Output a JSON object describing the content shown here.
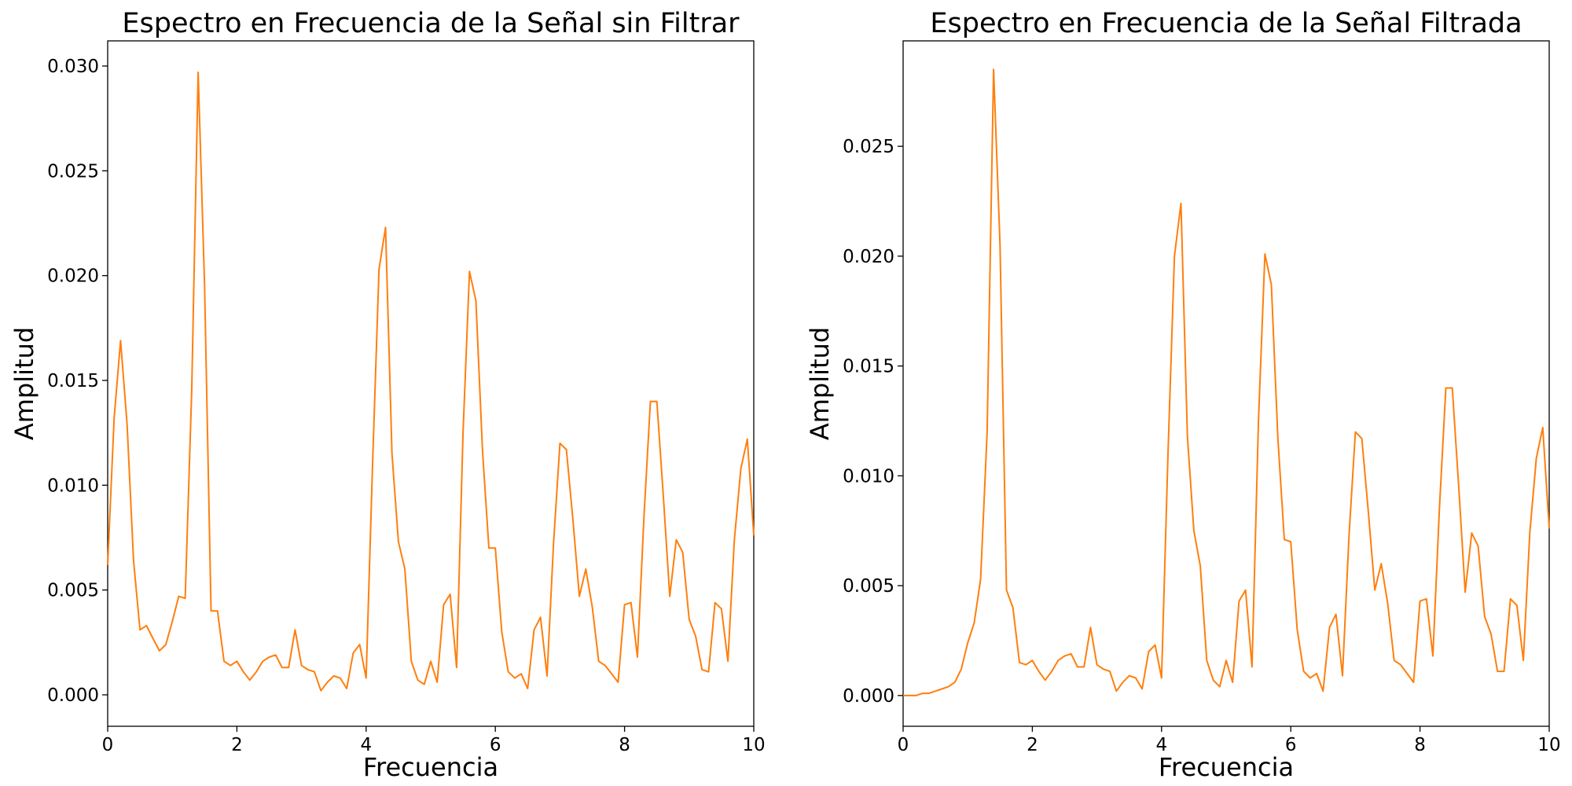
{
  "chart_data": [
    {
      "type": "line",
      "title": "Espectro en Frecuencia de la Señal sin Filtrar",
      "xlabel": "Frecuencia",
      "ylabel": "Amplitud",
      "xlim": [
        0,
        10
      ],
      "ylim": [
        -0.0015,
        0.0312
      ],
      "xticks": [
        0,
        2,
        4,
        6,
        8,
        10
      ],
      "xtick_labels": [
        "0",
        "2",
        "4",
        "6",
        "8",
        "10"
      ],
      "yticks": [
        0.0,
        0.005,
        0.01,
        0.015,
        0.02,
        0.025,
        0.03
      ],
      "ytick_labels": [
        "0.000",
        "0.005",
        "0.010",
        "0.015",
        "0.020",
        "0.025",
        "0.030"
      ],
      "grid": false,
      "color": "#ff7f0e",
      "series": [
        {
          "x": [
            0.0,
            0.1,
            0.2,
            0.3,
            0.4,
            0.5,
            0.6,
            0.7,
            0.8,
            0.9,
            1.0,
            1.1,
            1.2,
            1.3,
            1.4,
            1.5,
            1.6,
            1.7,
            1.8,
            1.9,
            2.0,
            2.1,
            2.2,
            2.3,
            2.4,
            2.5,
            2.6,
            2.7,
            2.8,
            2.9,
            3.0,
            3.1,
            3.2,
            3.3,
            3.4,
            3.5,
            3.6,
            3.7,
            3.8,
            3.9,
            4.0,
            4.1,
            4.2,
            4.3,
            4.4,
            4.5,
            4.6,
            4.7,
            4.8,
            4.9,
            5.0,
            5.1,
            5.2,
            5.3,
            5.4,
            5.5,
            5.6,
            5.7,
            5.8,
            5.9,
            6.0,
            6.1,
            6.2,
            6.3,
            6.4,
            6.5,
            6.6,
            6.7,
            6.8,
            6.9,
            7.0,
            7.1,
            7.2,
            7.3,
            7.4,
            7.5,
            7.6,
            7.7,
            7.8,
            7.9,
            8.0,
            8.1,
            8.2,
            8.3,
            8.4,
            8.5,
            8.6,
            8.7,
            8.8,
            8.9,
            9.0,
            9.1,
            9.2,
            9.3,
            9.4,
            9.5,
            9.6,
            9.7,
            9.8,
            9.9,
            10.0
          ],
          "values": [
            0.0062,
            0.0132,
            0.0169,
            0.0129,
            0.0064,
            0.0031,
            0.0033,
            0.0027,
            0.0021,
            0.0024,
            0.0035,
            0.0047,
            0.0046,
            0.0145,
            0.0297,
            0.0195,
            0.004,
            0.004,
            0.0016,
            0.0014,
            0.0016,
            0.0011,
            0.0007,
            0.0011,
            0.0016,
            0.0018,
            0.0019,
            0.0013,
            0.0013,
            0.0031,
            0.0014,
            0.0012,
            0.0011,
            0.0002,
            0.0006,
            0.0009,
            0.0008,
            0.0003,
            0.002,
            0.0024,
            0.0008,
            0.011,
            0.0203,
            0.0223,
            0.0115,
            0.0073,
            0.006,
            0.0016,
            0.0007,
            0.0005,
            0.0016,
            0.0006,
            0.0043,
            0.0048,
            0.0013,
            0.0125,
            0.0202,
            0.0188,
            0.0117,
            0.007,
            0.007,
            0.003,
            0.0011,
            0.0008,
            0.001,
            0.0003,
            0.0031,
            0.0037,
            0.0009,
            0.0072,
            0.012,
            0.0117,
            0.0084,
            0.0047,
            0.006,
            0.0042,
            0.0016,
            0.0014,
            0.001,
            0.0006,
            0.0043,
            0.0044,
            0.0018,
            0.0085,
            0.014,
            0.014,
            0.0095,
            0.0047,
            0.0074,
            0.0068,
            0.0036,
            0.0028,
            0.0012,
            0.0011,
            0.0044,
            0.0041,
            0.0016,
            0.0074,
            0.0108,
            0.0122,
            0.0076
          ]
        }
      ]
    },
    {
      "type": "line",
      "title": "Espectro en Frecuencia de la Señal Filtrada",
      "xlabel": "Frecuencia",
      "ylabel": "Amplitud",
      "xlim": [
        0,
        10
      ],
      "ylim": [
        -0.0014,
        0.0298
      ],
      "xticks": [
        0,
        2,
        4,
        6,
        8,
        10
      ],
      "xtick_labels": [
        "0",
        "2",
        "4",
        "6",
        "8",
        "10"
      ],
      "yticks": [
        0.0,
        0.005,
        0.01,
        0.015,
        0.02,
        0.025
      ],
      "ytick_labels": [
        "0.000",
        "0.005",
        "0.010",
        "0.015",
        "0.020",
        "0.025"
      ],
      "grid": false,
      "color": "#ff7f0e",
      "series": [
        {
          "x": [
            0.0,
            0.1,
            0.2,
            0.3,
            0.4,
            0.5,
            0.6,
            0.7,
            0.8,
            0.9,
            1.0,
            1.1,
            1.2,
            1.3,
            1.4,
            1.5,
            1.6,
            1.7,
            1.8,
            1.9,
            2.0,
            2.1,
            2.2,
            2.3,
            2.4,
            2.5,
            2.6,
            2.7,
            2.8,
            2.9,
            3.0,
            3.1,
            3.2,
            3.3,
            3.4,
            3.5,
            3.6,
            3.7,
            3.8,
            3.9,
            4.0,
            4.1,
            4.2,
            4.3,
            4.4,
            4.5,
            4.6,
            4.7,
            4.8,
            4.9,
            5.0,
            5.1,
            5.2,
            5.3,
            5.4,
            5.5,
            5.6,
            5.7,
            5.8,
            5.9,
            6.0,
            6.1,
            6.2,
            6.3,
            6.4,
            6.5,
            6.6,
            6.7,
            6.8,
            6.9,
            7.0,
            7.1,
            7.2,
            7.3,
            7.4,
            7.5,
            7.6,
            7.7,
            7.8,
            7.9,
            8.0,
            8.1,
            8.2,
            8.3,
            8.4,
            8.5,
            8.6,
            8.7,
            8.8,
            8.9,
            9.0,
            9.1,
            9.2,
            9.3,
            9.4,
            9.5,
            9.6,
            9.7,
            9.8,
            9.9,
            10.0
          ],
          "values": [
            0.0,
            0.0,
            0.0,
            0.0001,
            0.0001,
            0.0002,
            0.0003,
            0.0004,
            0.0006,
            0.0012,
            0.0024,
            0.0033,
            0.0053,
            0.012,
            0.0285,
            0.0205,
            0.0048,
            0.004,
            0.0015,
            0.0014,
            0.0016,
            0.0011,
            0.0007,
            0.0011,
            0.0016,
            0.0018,
            0.0019,
            0.0013,
            0.0013,
            0.0031,
            0.0014,
            0.0012,
            0.0011,
            0.0002,
            0.0006,
            0.0009,
            0.0008,
            0.0003,
            0.002,
            0.0023,
            0.0008,
            0.011,
            0.02,
            0.0224,
            0.0118,
            0.0075,
            0.0059,
            0.0016,
            0.0007,
            0.0004,
            0.0016,
            0.0006,
            0.0043,
            0.0048,
            0.0013,
            0.0125,
            0.0201,
            0.0187,
            0.0117,
            0.0071,
            0.007,
            0.003,
            0.0011,
            0.0008,
            0.001,
            0.0002,
            0.0031,
            0.0037,
            0.0009,
            0.0072,
            0.012,
            0.0117,
            0.0084,
            0.0048,
            0.006,
            0.0042,
            0.0016,
            0.0014,
            0.001,
            0.0006,
            0.0043,
            0.0044,
            0.0018,
            0.0085,
            0.014,
            0.014,
            0.0095,
            0.0047,
            0.0074,
            0.0068,
            0.0036,
            0.0028,
            0.0011,
            0.0011,
            0.0044,
            0.0041,
            0.0016,
            0.0074,
            0.0108,
            0.0122,
            0.0076
          ]
        }
      ]
    }
  ]
}
